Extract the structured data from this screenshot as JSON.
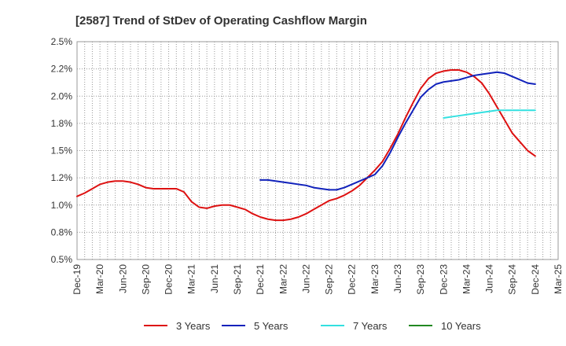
{
  "chart_data": {
    "type": "line",
    "title": "[2587]  Trend of StDev of Operating Cashflow Margin",
    "xlabel": "",
    "ylabel": "",
    "x_ticks": [
      "Dec-19",
      "Mar-20",
      "Jun-20",
      "Sep-20",
      "Dec-20",
      "Mar-21",
      "Jun-21",
      "Sep-21",
      "Dec-21",
      "Mar-22",
      "Jun-22",
      "Sep-22",
      "Dec-22",
      "Mar-23",
      "Jun-23",
      "Sep-23",
      "Dec-23",
      "Mar-24",
      "Jun-24",
      "Sep-24",
      "Dec-24",
      "Mar-25"
    ],
    "y_ticks": [
      "0.5%",
      "0.8%",
      "1.0%",
      "1.2%",
      "1.5%",
      "1.8%",
      "2.0%",
      "2.2%",
      "2.5%"
    ],
    "ylim": [
      0.5,
      2.5
    ],
    "grid": true,
    "legend_position": "bottom",
    "series": [
      {
        "name": "3 Years",
        "color": "#dd1111",
        "x": [
          "Dec-19",
          "Jan-20",
          "Feb-20",
          "Mar-20",
          "Apr-20",
          "May-20",
          "Jun-20",
          "Jul-20",
          "Aug-20",
          "Sep-20",
          "Oct-20",
          "Nov-20",
          "Dec-20",
          "Jan-21",
          "Feb-21",
          "Mar-21",
          "Apr-21",
          "May-21",
          "Jun-21",
          "Jul-21",
          "Aug-21",
          "Sep-21",
          "Oct-21",
          "Nov-21",
          "Dec-21",
          "Jan-22",
          "Feb-22",
          "Mar-22",
          "Apr-22",
          "May-22",
          "Jun-22",
          "Jul-22",
          "Aug-22",
          "Sep-22",
          "Oct-22",
          "Nov-22",
          "Dec-22",
          "Jan-23",
          "Feb-23",
          "Mar-23",
          "Apr-23",
          "May-23",
          "Jun-23",
          "Jul-23",
          "Aug-23",
          "Sep-23",
          "Oct-23",
          "Nov-23",
          "Dec-23",
          "Jan-24",
          "Feb-24",
          "Mar-24",
          "Apr-24",
          "May-24",
          "Jun-24",
          "Jul-24",
          "Aug-24",
          "Sep-24",
          "Oct-24",
          "Nov-24",
          "Dec-24"
        ],
        "values": [
          1.08,
          1.11,
          1.15,
          1.19,
          1.21,
          1.22,
          1.22,
          1.21,
          1.19,
          1.16,
          1.15,
          1.15,
          1.15,
          1.15,
          1.12,
          1.03,
          0.98,
          0.97,
          0.99,
          1.0,
          1.0,
          0.98,
          0.96,
          0.92,
          0.89,
          0.87,
          0.86,
          0.86,
          0.87,
          0.89,
          0.92,
          0.96,
          1.0,
          1.04,
          1.06,
          1.09,
          1.13,
          1.18,
          1.25,
          1.32,
          1.4,
          1.52,
          1.65,
          1.8,
          1.94,
          2.07,
          2.16,
          2.21,
          2.23,
          2.24,
          2.24,
          2.22,
          2.18,
          2.12,
          2.02,
          1.9,
          1.78,
          1.66,
          1.58,
          1.5,
          1.45
        ]
      },
      {
        "name": "5 Years",
        "color": "#1122bb",
        "x": [
          "Dec-21",
          "Jan-22",
          "Feb-22",
          "Mar-22",
          "Apr-22",
          "May-22",
          "Jun-22",
          "Jul-22",
          "Aug-22",
          "Sep-22",
          "Oct-22",
          "Nov-22",
          "Dec-22",
          "Jan-23",
          "Feb-23",
          "Mar-23",
          "Apr-23",
          "May-23",
          "Jun-23",
          "Jul-23",
          "Aug-23",
          "Sep-23",
          "Oct-23",
          "Nov-23",
          "Dec-23",
          "Jan-24",
          "Feb-24",
          "Mar-24",
          "Apr-24",
          "May-24",
          "Jun-24",
          "Jul-24",
          "Aug-24",
          "Sep-24",
          "Oct-24",
          "Nov-24",
          "Dec-24"
        ],
        "values": [
          1.23,
          1.23,
          1.22,
          1.21,
          1.2,
          1.19,
          1.18,
          1.16,
          1.15,
          1.14,
          1.14,
          1.16,
          1.19,
          1.22,
          1.25,
          1.28,
          1.36,
          1.48,
          1.62,
          1.75,
          1.87,
          1.99,
          2.06,
          2.11,
          2.13,
          2.14,
          2.15,
          2.17,
          2.19,
          2.2,
          2.21,
          2.22,
          2.21,
          2.18,
          2.15,
          2.12,
          2.11
        ]
      },
      {
        "name": "7 Years",
        "color": "#33e0e0",
        "x": [
          "Dec-23",
          "Jan-24",
          "Feb-24",
          "Mar-24",
          "Apr-24",
          "May-24",
          "Jun-24",
          "Jul-24",
          "Aug-24",
          "Sep-24",
          "Oct-24",
          "Nov-24",
          "Dec-24"
        ],
        "values": [
          1.8,
          1.81,
          1.82,
          1.83,
          1.84,
          1.85,
          1.86,
          1.87,
          1.87,
          1.87,
          1.87,
          1.87,
          1.87
        ]
      },
      {
        "name": "10 Years",
        "color": "#228822",
        "x": [],
        "values": []
      }
    ]
  }
}
